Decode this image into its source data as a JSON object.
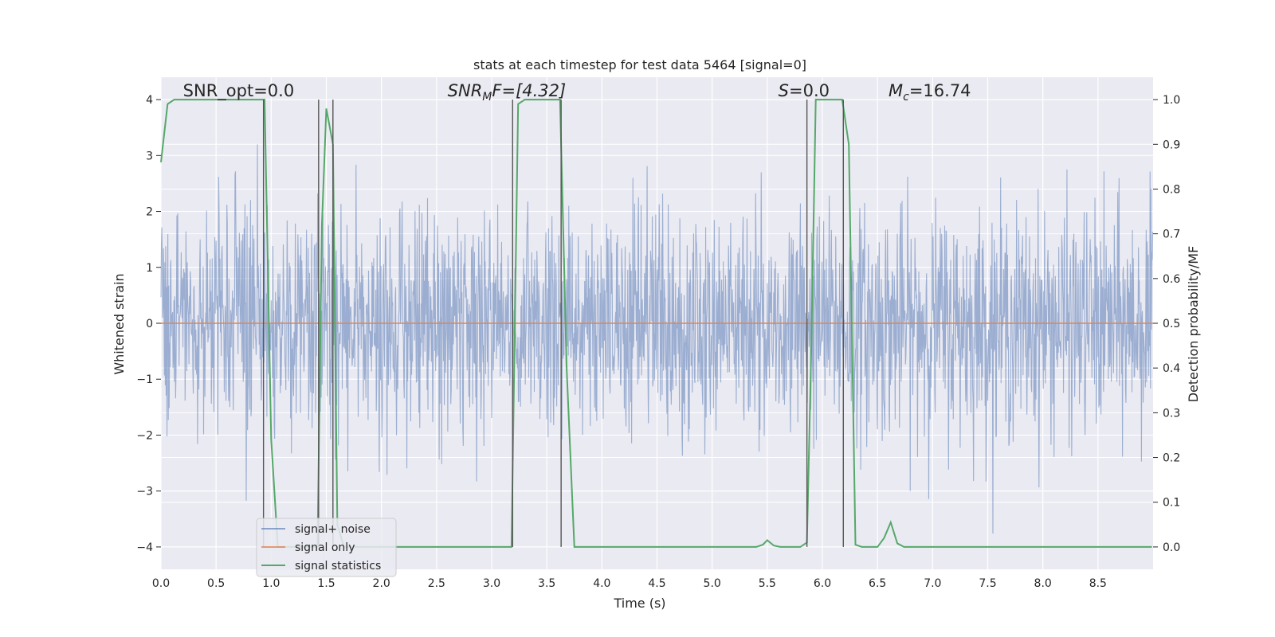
{
  "chart_data": {
    "type": "line",
    "title": "stats at each timestep for test data 5464 [signal=0]",
    "xlabel": "Time (s)",
    "ylabel": "Whitened strain",
    "y2label": "Detection probability/MF",
    "xlim": [
      0.0,
      9.0
    ],
    "ylim": [
      -4.4,
      4.4
    ],
    "y2lim": [
      -0.05,
      1.05
    ],
    "x_ticks": [
      0.0,
      0.5,
      1.0,
      1.5,
      2.0,
      2.5,
      3.0,
      3.5,
      4.0,
      4.5,
      5.0,
      5.5,
      6.0,
      6.5,
      7.0,
      7.5,
      8.0,
      8.5
    ],
    "x_tick_labels": [
      "0.0",
      "0.5",
      "1.0",
      "1.5",
      "2.0",
      "2.5",
      "3.0",
      "3.5",
      "4.0",
      "4.5",
      "5.0",
      "5.5",
      "6.0",
      "6.5",
      "7.0",
      "7.5",
      "8.0",
      "8.5"
    ],
    "y_ticks": [
      -4,
      -3,
      -2,
      -1,
      0,
      1,
      2,
      3,
      4
    ],
    "y_tick_labels": [
      "−4",
      "−3",
      "−2",
      "−1",
      "0",
      "1",
      "2",
      "3",
      "4"
    ],
    "y2_ticks": [
      0.0,
      0.1,
      0.2,
      0.3,
      0.4,
      0.5,
      0.6,
      0.7,
      0.8,
      0.9,
      1.0
    ],
    "y2_tick_labels": [
      "0.0",
      "0.1",
      "0.2",
      "0.3",
      "0.4",
      "0.5",
      "0.6",
      "0.7",
      "0.8",
      "0.9",
      "1.0"
    ],
    "grid": true,
    "legend_position": "lower-left",
    "annotations": [
      {
        "label": "SNR_opt=0.0",
        "x": 0.2,
        "y": 4.1
      },
      {
        "label": "SNR",
        "sub": "M",
        "rest": "F=[4.32]",
        "italic": true,
        "x": 2.6,
        "y": 4.1
      },
      {
        "label": "S",
        "rest": "=0.0",
        "italic": true,
        "x": 5.6,
        "y": 4.1
      },
      {
        "label": "M",
        "sub": "c",
        "rest": "=16.74",
        "italic": true,
        "x": 6.6,
        "y": 4.1
      }
    ],
    "series": [
      {
        "name": "signal+ noise",
        "color": "#4c72b0",
        "description_type": "noise",
        "sample_rate": 256,
        "duration": 9.0,
        "amplitude_sigma": 1.0
      },
      {
        "name": "signal only",
        "color": "#dd8452",
        "x": [
          0.0,
          9.0
        ],
        "y": [
          0.0,
          0.0
        ]
      },
      {
        "name": "signal statistics",
        "color": "#55a868",
        "axis": "right",
        "x": [
          0.0,
          0.06,
          0.12,
          0.18,
          0.5,
          0.9,
          0.94,
          1.0,
          1.06,
          1.12,
          1.18,
          1.24,
          1.3,
          1.36,
          1.42,
          1.46,
          1.5,
          1.56,
          1.6,
          1.66,
          1.72,
          2.0,
          2.5,
          3.0,
          3.18,
          3.24,
          3.3,
          3.5,
          3.62,
          3.68,
          3.75,
          3.82,
          4.0,
          5.0,
          5.4,
          5.46,
          5.5,
          5.56,
          5.62,
          5.8,
          5.86,
          5.9,
          5.94,
          6.0,
          6.18,
          6.24,
          6.3,
          6.36,
          6.42,
          6.5,
          6.56,
          6.62,
          6.68,
          6.74,
          6.8,
          7.0,
          8.0,
          8.99
        ],
        "y": [
          0.86,
          0.99,
          1.0,
          1.0,
          1.0,
          1.0,
          1.0,
          0.24,
          0.0,
          0.0,
          0.0,
          0.0,
          0.0,
          0.0,
          0.0,
          0.72,
          0.98,
          0.9,
          0.05,
          0.0,
          0.0,
          0.0,
          0.0,
          0.0,
          0.0,
          0.99,
          1.0,
          1.0,
          1.0,
          0.4,
          0.0,
          0.0,
          0.0,
          0.0,
          0.0,
          0.005,
          0.015,
          0.003,
          0.0,
          0.0,
          0.01,
          0.45,
          1.0,
          1.0,
          1.0,
          0.9,
          0.005,
          0.0,
          0.0,
          0.0,
          0.02,
          0.055,
          0.008,
          0.0,
          0.0,
          0.0,
          0.0,
          0.0
        ]
      }
    ],
    "vlines": [
      0.93,
      1.43,
      1.56,
      3.19,
      3.63,
      5.86,
      6.19
    ]
  },
  "legend": {
    "items": [
      "signal+ noise",
      "signal only",
      "signal statistics"
    ]
  }
}
